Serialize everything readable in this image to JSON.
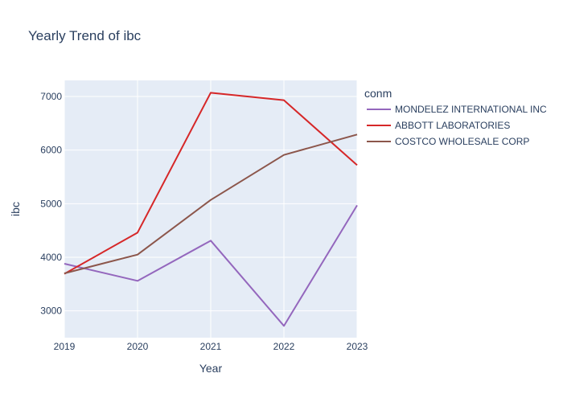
{
  "chart_data": {
    "type": "line",
    "title": "Yearly Trend of ibc",
    "xlabel": "Year",
    "ylabel": "ibc",
    "x": [
      2019,
      2020,
      2021,
      2022,
      2023
    ],
    "x_tick_labels": [
      "2019",
      "2020",
      "2021",
      "2022",
      "2023"
    ],
    "xlim": [
      2019,
      2023
    ],
    "ylim": [
      2500,
      7300
    ],
    "y_ticks": [
      3000,
      4000,
      5000,
      6000,
      7000
    ],
    "y_tick_labels": [
      "3000",
      "4000",
      "5000",
      "6000",
      "7000"
    ],
    "grid": true,
    "legend": {
      "title": "conm",
      "placement": "right"
    },
    "series": [
      {
        "name": "MONDELEZ INTERNATIONAL INC",
        "color": "#9467bd",
        "values": [
          3880,
          3560,
          4310,
          2720,
          4970
        ]
      },
      {
        "name": "ABBOTT LABORATORIES",
        "color": "#d62728",
        "values": [
          3690,
          4460,
          7070,
          6930,
          5720
        ]
      },
      {
        "name": "COSTCO WHOLESALE CORP",
        "color": "#8c564b",
        "values": [
          3700,
          4050,
          5070,
          5910,
          6290
        ]
      }
    ]
  },
  "colors": {
    "plot_background": "#e5ecf6",
    "grid": "#ffffff",
    "text": "#2a3f5f"
  }
}
